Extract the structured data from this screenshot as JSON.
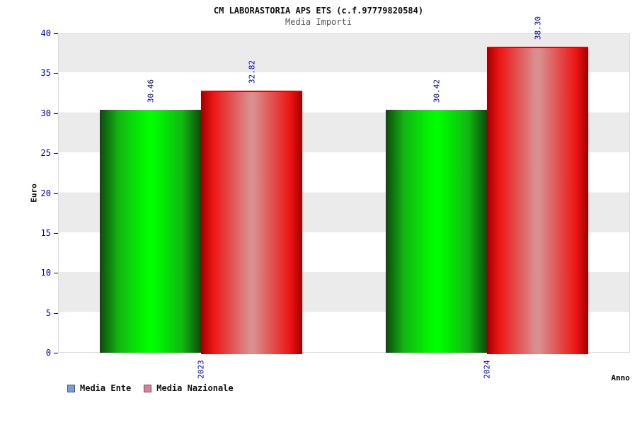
{
  "chart_data": {
    "type": "bar",
    "title": "CM LABORASTORIA APS ETS (c.f.97779820584)",
    "subtitle": "Media Importi",
    "xlabel": "Anno",
    "ylabel": "Euro",
    "ylim": [
      0,
      40
    ],
    "yticks": [
      0,
      5,
      10,
      15,
      20,
      25,
      30,
      35,
      40
    ],
    "grid": "horizontal-bands",
    "legend_position": "bottom-left",
    "categories": [
      "2023",
      "2024"
    ],
    "series": [
      {
        "name": "Media Ente",
        "values": [
          30.46,
          30.42
        ],
        "labels": [
          "30.46",
          "30.42"
        ],
        "bar_style": "green",
        "legend_color": "#7b9bd2",
        "legend_border": "#3a5a98"
      },
      {
        "name": "Media Nazionale",
        "values": [
          32.82,
          38.3
        ],
        "labels": [
          "32.82",
          "38.30"
        ],
        "bar_style": "red",
        "legend_color": "#d77fa1",
        "legend_border": "#983a5a"
      }
    ],
    "value_label_color": "#0000bb",
    "tick_label_color": "#0000bb",
    "category_label_color": "#0000bb"
  }
}
